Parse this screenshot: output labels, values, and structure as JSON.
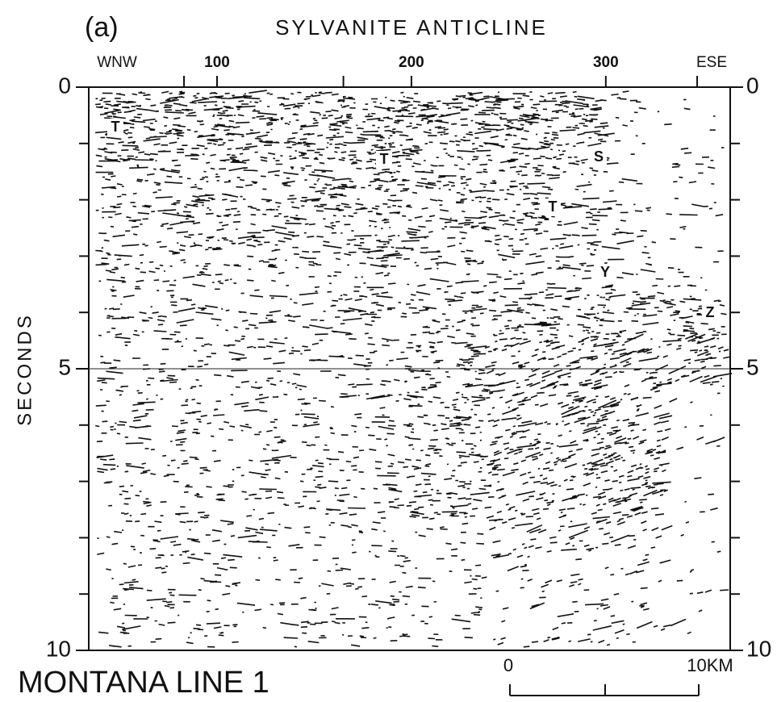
{
  "chart_data": {
    "type": "seismic-section",
    "panel_label": "(a)",
    "title": "SYLVANITE ANTICLINE",
    "left_end_label": "WNW",
    "right_end_label": "ESE",
    "y_label": "SECONDS",
    "xlim": [
      34,
      364
    ],
    "xticks": [
      100,
      200,
      300
    ],
    "x_minor_ticks": [
      83,
      165,
      347
    ],
    "ylim": [
      0,
      10
    ],
    "yticks": [
      0,
      5,
      10
    ],
    "y_minor_ticks": [
      1,
      2,
      3,
      4,
      6,
      7,
      8,
      9
    ],
    "hline": 5,
    "annotations": [
      "T",
      "T",
      "T",
      "S",
      "Y",
      "Z"
    ],
    "caption": "MONTANA LINE 1",
    "scale_bar": {
      "start_label": "0",
      "end_label": "10KM"
    }
  }
}
